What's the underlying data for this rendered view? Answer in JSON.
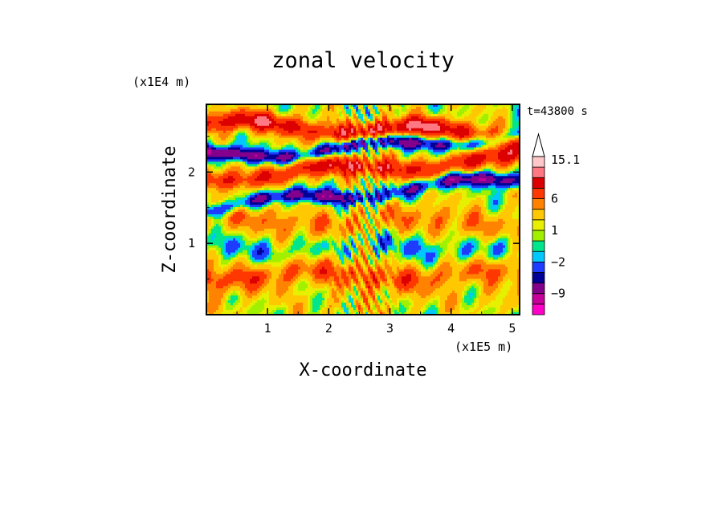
{
  "chart_data": {
    "type": "heatmap",
    "title": "zonal velocity",
    "time_label": "t=43800 s",
    "xlabel": "X-coordinate",
    "ylabel": "Z-coordinate",
    "x_scale_label": "(x1E5 m)",
    "y_scale_label": "(x1E4 m)",
    "xlim": [
      0,
      5.12
    ],
    "ylim": [
      0,
      2.95
    ],
    "x_ticks": [
      1,
      2,
      3,
      4,
      5
    ],
    "y_ticks": [
      1,
      2
    ],
    "colorbar": {
      "levels": [
        -14,
        -11,
        -9,
        -6,
        -4,
        -2,
        -1,
        0,
        1,
        2,
        4,
        6,
        9,
        12,
        15.1
      ],
      "colors": [
        "#ff00c8",
        "#c8009b",
        "#82008c",
        "#000096",
        "#1e3cff",
        "#00c8ff",
        "#00e68c",
        "#a0f000",
        "#e6f000",
        "#ffc800",
        "#ff8200",
        "#ff3700",
        "#dc0000",
        "#ff7882",
        "#ffc8c8"
      ],
      "labels": [
        {
          "text": "15.1",
          "value": 15.1
        },
        {
          "text": "6",
          "value": 6
        },
        {
          "text": "1",
          "value": 1
        },
        {
          "text": "−2",
          "value": -2
        },
        {
          "text": "−9",
          "value": -9
        }
      ],
      "extend": "max"
    },
    "field": {
      "description_keys": "bands: z center (x1E4 m), amplitude (velocity), thickness",
      "bands": [
        {
          "z": 2.6,
          "amp": 8.0,
          "w": 0.14,
          "tilt": -0.03
        },
        {
          "z": 2.35,
          "amp": -9.0,
          "w": 0.1,
          "tilt": 0.06
        },
        {
          "z": 2.05,
          "amp": 7.0,
          "w": 0.14,
          "tilt": 0.05
        },
        {
          "z": 1.7,
          "amp": -8.0,
          "w": 0.1,
          "tilt": 0.08
        },
        {
          "z": 1.3,
          "amp": 3.0,
          "w": 0.2,
          "tilt": 0.0
        },
        {
          "z": 0.95,
          "amp": -2.5,
          "w": 0.16,
          "tilt": 0.0
        },
        {
          "z": 0.55,
          "amp": 4.5,
          "w": 0.18,
          "tilt": 0.0
        },
        {
          "z": 0.2,
          "amp": 1.0,
          "w": 0.2,
          "tilt": 0.0
        }
      ]
    }
  }
}
